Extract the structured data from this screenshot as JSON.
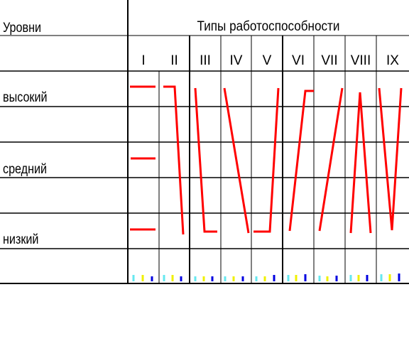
{
  "header": {
    "levels_title": "Уровни",
    "types_title": "Типы работоспособности"
  },
  "levels": [
    "высокий",
    "средний",
    "низкий"
  ],
  "types": [
    "I",
    "II",
    "III",
    "IV",
    "V",
    "VI",
    "VII",
    "VIII",
    "IX"
  ],
  "colors": {
    "grid": "#000000",
    "curve": "#ff0000",
    "marker_cyan": "#66e8f0",
    "marker_yellow": "#f0f000",
    "marker_blue": "#0000e0"
  }
}
